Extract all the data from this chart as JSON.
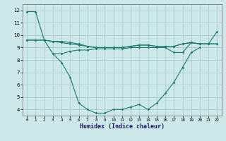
{
  "x": [
    0,
    1,
    2,
    3,
    4,
    5,
    6,
    7,
    8,
    9,
    10,
    11,
    12,
    13,
    14,
    15,
    16,
    17,
    18,
    19,
    20,
    21,
    22
  ],
  "line1": [
    11.9,
    11.9,
    9.6,
    9.5,
    9.5,
    9.4,
    9.3,
    9.1,
    9.0,
    9.0,
    9.0,
    9.0,
    9.1,
    9.2,
    9.2,
    9.1,
    9.1,
    9.1,
    9.3,
    9.4,
    9.3,
    9.3,
    10.3
  ],
  "line2": [
    9.6,
    9.6,
    9.6,
    9.5,
    9.4,
    9.3,
    9.2,
    9.1,
    9.0,
    9.0,
    9.0,
    9.0,
    9.1,
    9.2,
    9.2,
    9.1,
    9.1,
    9.1,
    9.3,
    9.4,
    9.3,
    9.3,
    9.3
  ],
  "line3": [
    9.6,
    9.6,
    9.6,
    8.5,
    8.5,
    8.7,
    8.8,
    8.8,
    8.9,
    8.9,
    8.9,
    8.9,
    9.0,
    9.0,
    9.0,
    9.0,
    9.0,
    8.6,
    8.6,
    9.4,
    9.3,
    9.3,
    9.3
  ],
  "line4": [
    null,
    null,
    null,
    8.5,
    7.8,
    6.6,
    4.5,
    4.0,
    3.7,
    3.7,
    4.0,
    4.0,
    4.2,
    4.4,
    4.0,
    4.5,
    5.3,
    6.2,
    7.4,
    8.6,
    9.0,
    null,
    null
  ],
  "color": "#1a7a6e",
  "bg_color": "#cce8e8",
  "grid_color": "#aacccc",
  "xlabel": "Humidex (Indice chaleur)",
  "ylim": [
    3.5,
    12.5
  ],
  "xlim": [
    -0.5,
    22.5
  ],
  "yticks": [
    4,
    5,
    6,
    7,
    8,
    9,
    10,
    11,
    12
  ],
  "xticks": [
    0,
    1,
    2,
    3,
    4,
    5,
    6,
    7,
    8,
    9,
    10,
    11,
    12,
    13,
    14,
    15,
    16,
    17,
    18,
    19,
    20,
    21,
    22
  ]
}
